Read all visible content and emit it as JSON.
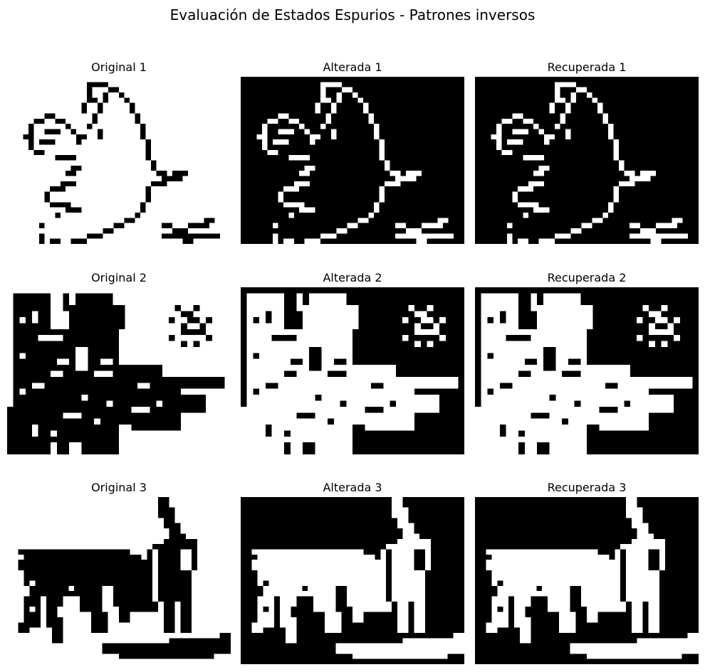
{
  "figure": {
    "title": "Evaluación de Estados Espurios - Patrones inversos"
  },
  "rows": [
    {
      "original_title": "Original 1",
      "altered_title": "Alterada 1",
      "recovered_title": "Recuperada 1",
      "subject": "dove-line-drawing"
    },
    {
      "original_title": "Original 2",
      "altered_title": "Alterada 2",
      "recovered_title": "Recuperada 2",
      "subject": "landscape-with-sun"
    },
    {
      "original_title": "Original 3",
      "altered_title": "Alterada 3",
      "recovered_title": "Recuperada 3",
      "subject": "bullfighter-and-bull"
    }
  ],
  "colors": {
    "foreground_light_panel": "#000000",
    "background_light_panel": "#ffffff",
    "foreground_dark_panel": "#ffffff",
    "background_dark_panel": "#000000"
  }
}
